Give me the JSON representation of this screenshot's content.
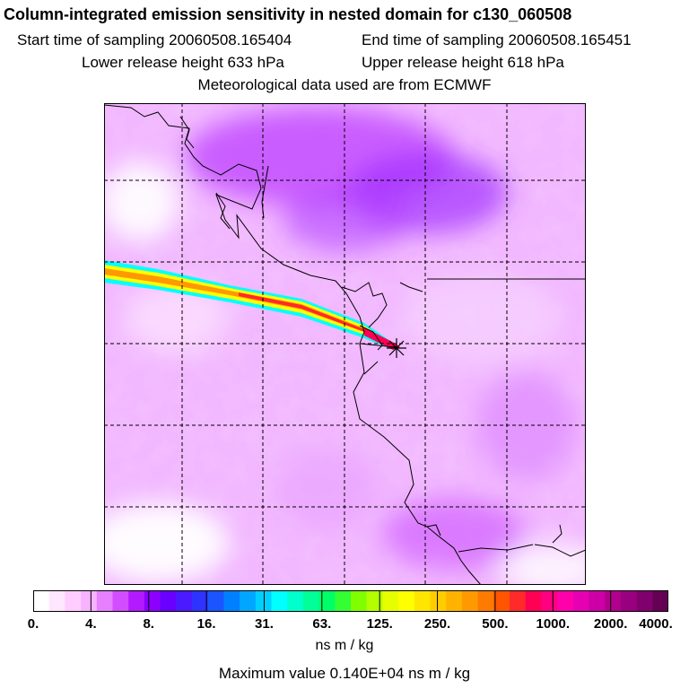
{
  "header": {
    "title": "Column-integrated emission sensitivity in nested domain for c130_060508",
    "start_label": "Start time of sampling 20060508.165404",
    "end_label": "End time of sampling 20060508.165451",
    "lower_label": "Lower release height  633 hPa",
    "upper_label": "Upper release height  618 hPa",
    "met_label": "Meteorological data used are from ECMWF"
  },
  "colorbar": {
    "tick_labels": [
      "0.",
      "4.",
      "8.",
      "16.",
      "31.",
      "63.",
      "125.",
      "250.",
      "500.",
      "1000.",
      "2000.",
      "4000."
    ],
    "colors": [
      "#ffffff",
      "#ffe6ff",
      "#ffccff",
      "#f7b3ff",
      "#e680ff",
      "#d24dff",
      "#b31aff",
      "#8c00ff",
      "#6a00ff",
      "#4b1aff",
      "#2e33ff",
      "#1a55ff",
      "#0080ff",
      "#00a6ff",
      "#00d0ff",
      "#00ffff",
      "#00ffcc",
      "#00ff99",
      "#00ff66",
      "#33ff33",
      "#80ff00",
      "#b3ff00",
      "#e6ff00",
      "#ffff00",
      "#ffe600",
      "#ffcc00",
      "#ffb300",
      "#ff9900",
      "#ff7a00",
      "#ff5500",
      "#ff2a2a",
      "#ff0055",
      "#ff0080",
      "#ff00aa",
      "#e600b3",
      "#cc00a6",
      "#b3008c",
      "#990080",
      "#80006e",
      "#660055"
    ]
  },
  "units_label": "ns m / kg",
  "max_label": "Maximum value  0.140E+04 ns m / kg",
  "map": {
    "release_marker": "star"
  }
}
